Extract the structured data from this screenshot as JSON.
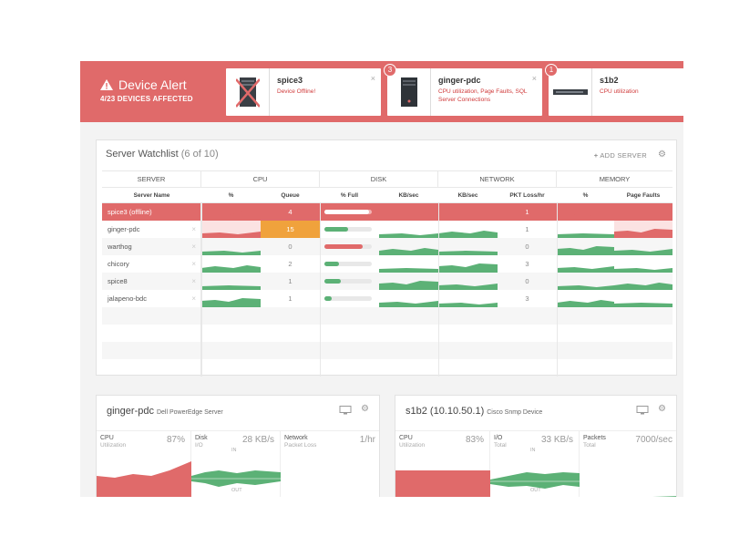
{
  "alert": {
    "title": "Device Alert",
    "subtitle": "4/23 DEVICES AFFECTED",
    "cards": [
      {
        "badge": "",
        "name": "spice3",
        "message": "Device Offline!"
      },
      {
        "badge": "3",
        "name": "ginger-pdc",
        "message": "CPU utilization, Page Faults, SQL Server Connections"
      },
      {
        "badge": "1",
        "name": "s1b2",
        "message": "CPU utilization"
      }
    ],
    "close_glyph": "×"
  },
  "watchlist": {
    "title": "Server Watchlist",
    "count": "(6 of 10)",
    "add_label": "ADD SERVER",
    "groups": [
      "SERVER",
      "CPU",
      "DISK",
      "NETWORK",
      "MEMORY"
    ],
    "columns": [
      "Server Name",
      "%",
      "Queue",
      "% Full",
      "KB/sec",
      "KB/sec",
      "PKT Loss/hr",
      "%",
      "Page Faults"
    ],
    "rows": [
      {
        "name": "spice3 (offline)",
        "queue": "4",
        "disk_full": 0.95,
        "pkt_loss": "1",
        "offline": true
      },
      {
        "name": "ginger-pdc",
        "queue": "15",
        "disk_full": 0.5,
        "pkt_loss": "1",
        "offline": false
      },
      {
        "name": "warthog",
        "queue": "0",
        "disk_full": 0.8,
        "pkt_loss": "0",
        "offline": false
      },
      {
        "name": "chicory",
        "queue": "2",
        "disk_full": 0.3,
        "pkt_loss": "3",
        "offline": false
      },
      {
        "name": "spice8",
        "queue": "1",
        "disk_full": 0.35,
        "pkt_loss": "0",
        "offline": false
      },
      {
        "name": "jalapeno-bdc",
        "queue": "1",
        "disk_full": 0.15,
        "pkt_loss": "3",
        "offline": false
      }
    ],
    "icons": {
      "add": "plus-icon",
      "settings": "gear-icon",
      "remove": "close-icon"
    }
  },
  "detail_cards": [
    {
      "name": "ginger-pdc",
      "type": "Dell PowerEdge Server",
      "metrics": [
        {
          "label": "CPU",
          "sub": "Utilization",
          "value": "87%"
        },
        {
          "label": "Disk",
          "sub": "I/O",
          "value": "28 KB/s",
          "in": "IN",
          "out": "OUT"
        },
        {
          "label": "Network",
          "sub": "Packet Loss",
          "value": "1/hr"
        }
      ]
    },
    {
      "name": "s1b2 (10.10.50.1)",
      "type": "Cisco Snmp Device",
      "metrics": [
        {
          "label": "CPU",
          "sub": "Utilization",
          "value": "83%"
        },
        {
          "label": "I/O",
          "sub": "Total",
          "value": "33 KB/s",
          "in": "IN",
          "out": "OUT"
        },
        {
          "label": "Packets",
          "sub": "Total",
          "value": "7000/sec"
        }
      ]
    }
  ],
  "colors": {
    "alert": "#e06a6a",
    "good": "#5cb176",
    "bad": "#e06a6a",
    "warn": "#f0a23c"
  }
}
